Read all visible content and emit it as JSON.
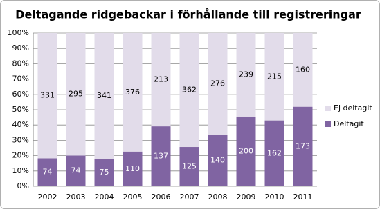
{
  "chart_data": {
    "type": "bar",
    "stack": "percent",
    "title": "Deltagande ridgebackar i förhållande till registreringar",
    "categories": [
      "2002",
      "2003",
      "2004",
      "2005",
      "2006",
      "2007",
      "2008",
      "2009",
      "2010",
      "2011"
    ],
    "series": [
      {
        "name": "Deltagit",
        "color": "#8064a2",
        "values": [
          74,
          74,
          75,
          110,
          137,
          125,
          140,
          200,
          162,
          173
        ]
      },
      {
        "name": "Ej deltagit",
        "color": "#e2dcea",
        "values": [
          331,
          295,
          341,
          376,
          213,
          362,
          276,
          239,
          215,
          160
        ]
      }
    ],
    "ylim": [
      0,
      100
    ],
    "yticks": [
      {
        "value": 0,
        "label": "0%"
      },
      {
        "value": 10,
        "label": "10%"
      },
      {
        "value": 20,
        "label": "20%"
      },
      {
        "value": 30,
        "label": "30%"
      },
      {
        "value": 40,
        "label": "40%"
      },
      {
        "value": 50,
        "label": "50%"
      },
      {
        "value": 60,
        "label": "60%"
      },
      {
        "value": 70,
        "label": "70%"
      },
      {
        "value": 80,
        "label": "80%"
      },
      {
        "value": 90,
        "label": "90%"
      },
      {
        "value": 100,
        "label": "100%"
      }
    ],
    "grid": true,
    "legend": "right"
  }
}
